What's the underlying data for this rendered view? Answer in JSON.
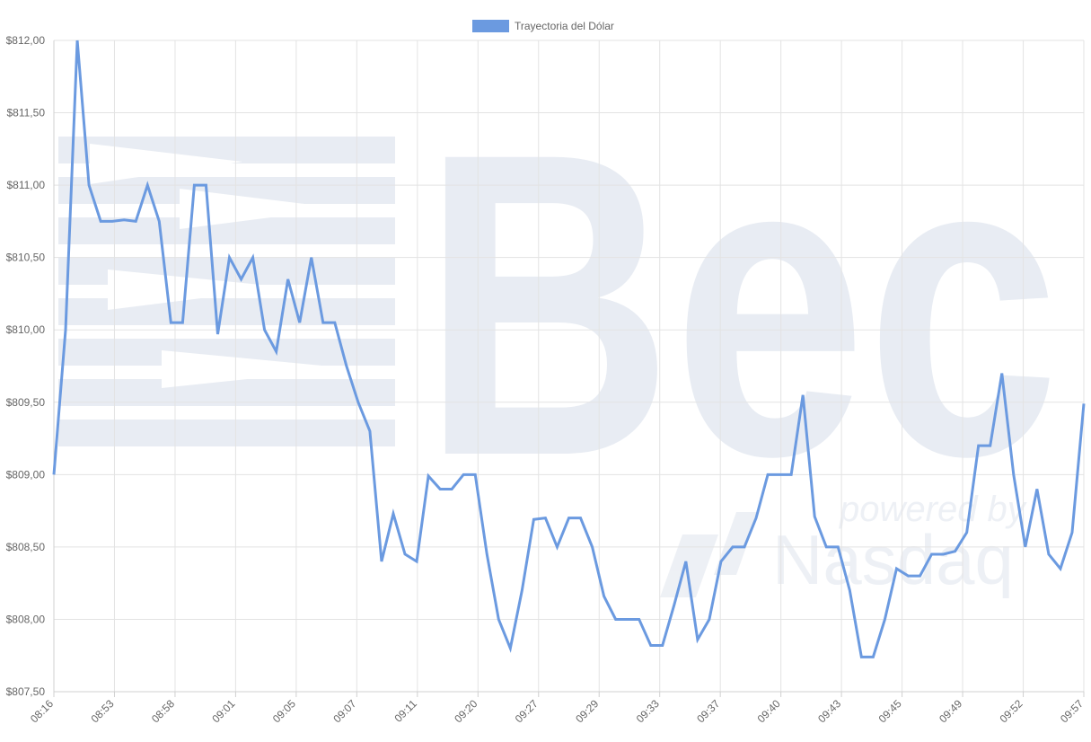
{
  "chart_data": {
    "type": "line",
    "legend": {
      "label": "Trayectoria del Dólar",
      "position": "top-center"
    },
    "series": [
      {
        "name": "Trayectoria del Dólar",
        "color": "#6b9ae0",
        "values": [
          809.0,
          810.0,
          812.0,
          811.0,
          810.75,
          810.75,
          810.76,
          810.75,
          811.0,
          810.75,
          810.05,
          810.05,
          811.0,
          811.0,
          809.97,
          810.5,
          810.35,
          810.5,
          810.0,
          809.85,
          810.35,
          810.05,
          810.5,
          810.05,
          810.05,
          809.75,
          809.5,
          809.3,
          808.4,
          808.73,
          808.45,
          808.4,
          808.99,
          808.9,
          808.9,
          809.0,
          809.0,
          808.45,
          808.0,
          807.8,
          808.2,
          808.69,
          808.7,
          808.5,
          808.7,
          808.7,
          808.5,
          808.16,
          808.0,
          808.0,
          808.0,
          807.82,
          807.82,
          808.1,
          808.4,
          807.86,
          808.0,
          808.4,
          808.5,
          808.5,
          808.7,
          809.0,
          809.0,
          809.0,
          809.55,
          808.71,
          808.5,
          808.5,
          808.2,
          807.74,
          807.74,
          808.0,
          808.35,
          808.3,
          808.3,
          808.45,
          808.45,
          808.47,
          808.6,
          809.2,
          809.2,
          809.7,
          809.0,
          808.5,
          808.9,
          808.45,
          808.35,
          808.6,
          809.49
        ]
      }
    ],
    "x_tick_labels": [
      "08:16",
      "08:53",
      "08:58",
      "09:01",
      "09:05",
      "09:07",
      "09:11",
      "09:20",
      "09:27",
      "09:29",
      "09:33",
      "09:37",
      "09:40",
      "09:43",
      "09:45",
      "09:49",
      "09:52",
      "09:57"
    ],
    "y_tick_labels": [
      "$807,50",
      "$808,00",
      "$808,50",
      "$809,00",
      "$809,50",
      "$810,00",
      "$810,50",
      "$811,00",
      "$811,50",
      "$812,00"
    ],
    "ylim": [
      807.5,
      812.0
    ],
    "y_step": 0.5,
    "grid": true,
    "watermark_brand": "Bec",
    "watermark_tagline": "powered by",
    "watermark_partner": "Nasdaq"
  }
}
